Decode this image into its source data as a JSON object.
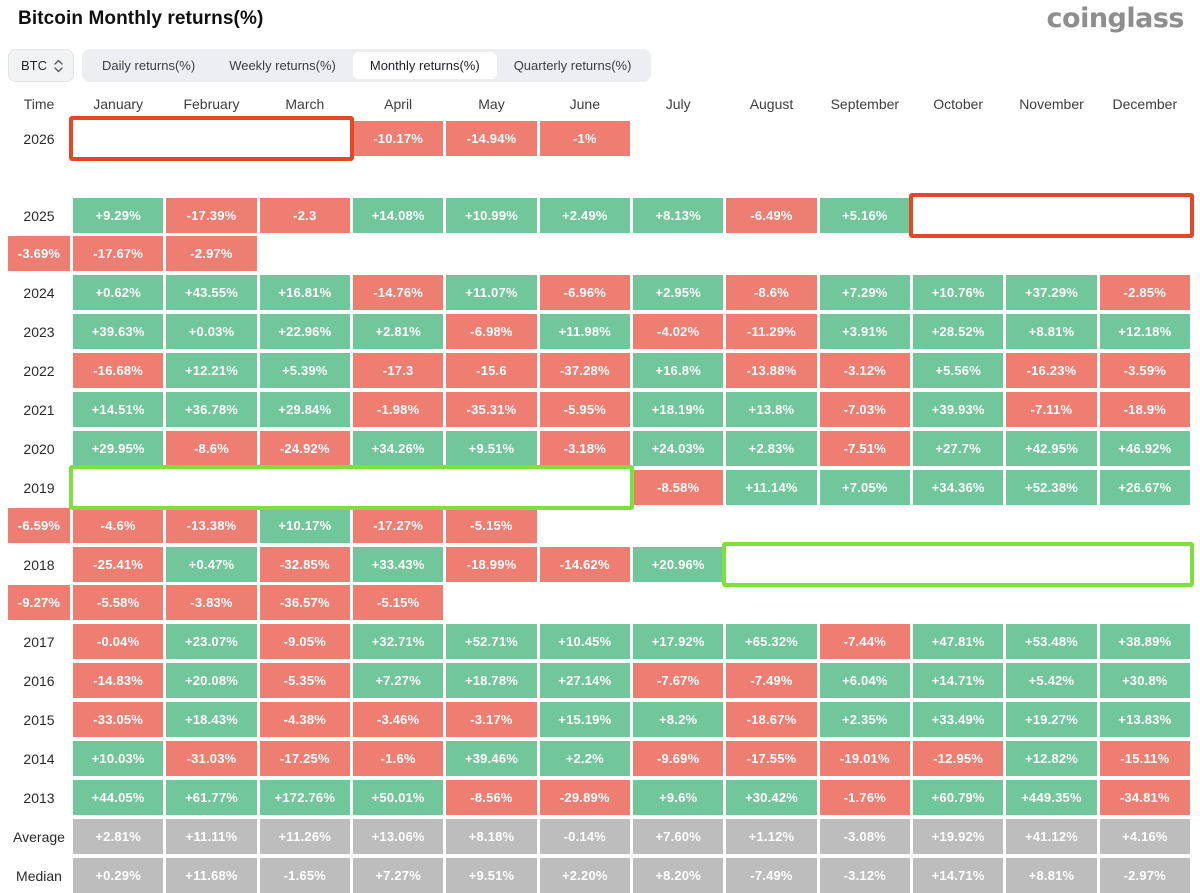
{
  "header": {
    "title": "Bitcoin Monthly returns(%)",
    "logo": "coinglass"
  },
  "controls": {
    "coin_selector": "BTC",
    "tabs": [
      {
        "label": "Daily returns(%)",
        "active": false
      },
      {
        "label": "Weekly returns(%)",
        "active": false
      },
      {
        "label": "Monthly returns(%)",
        "active": true
      },
      {
        "label": "Quarterly returns(%)",
        "active": false
      }
    ]
  },
  "chart_data": {
    "type": "heatmap",
    "title": "Bitcoin Monthly returns(%)",
    "columns": [
      "Time",
      "January",
      "February",
      "March",
      "April",
      "May",
      "June",
      "July",
      "August",
      "September",
      "October",
      "November",
      "December"
    ],
    "colors": {
      "positive": "#71c69b",
      "negative": "#ee7e72",
      "summary_bg": "#bdbdbd",
      "red_box": "#e54726",
      "green_box": "#7ee03c",
      "cell_text": "#ffffff"
    },
    "rows": [
      {
        "label": "2026",
        "values": [
          "-10.17%",
          "-14.94%",
          "-1%",
          "",
          "",
          "",
          "",
          "",
          "",
          "",
          "",
          ""
        ],
        "box": {
          "from": 1,
          "to": 3,
          "color": "red"
        }
      },
      {
        "label": "2025",
        "values": [
          "+9.29%",
          "-17.39%",
          "-2.3",
          "+14.08%",
          "+10.99%",
          "+2.49%",
          "+8.13%",
          "-6.49%",
          "+5.16%",
          "-3.69%",
          "-17.67%",
          "-2.97%"
        ],
        "box": {
          "from": 10,
          "to": 12,
          "color": "red"
        }
      },
      {
        "label": "2024",
        "values": [
          "+0.62%",
          "+43.55%",
          "+16.81%",
          "-14.76%",
          "+11.07%",
          "-6.96%",
          "+2.95%",
          "-8.6%",
          "+7.29%",
          "+10.76%",
          "+37.29%",
          "-2.85%"
        ]
      },
      {
        "label": "2023",
        "values": [
          "+39.63%",
          "+0.03%",
          "+22.96%",
          "+2.81%",
          "-6.98%",
          "+11.98%",
          "-4.02%",
          "-11.29%",
          "+3.91%",
          "+28.52%",
          "+8.81%",
          "+12.18%"
        ]
      },
      {
        "label": "2022",
        "values": [
          "-16.68%",
          "+12.21%",
          "+5.39%",
          "-17.3",
          "-15.6",
          "-37.28%",
          "+16.8%",
          "-13.88%",
          "-3.12%",
          "+5.56%",
          "-16.23%",
          "-3.59%"
        ]
      },
      {
        "label": "2021",
        "values": [
          "+14.51%",
          "+36.78%",
          "+29.84%",
          "-1.98%",
          "-35.31%",
          "-5.95%",
          "+18.19%",
          "+13.8%",
          "-7.03%",
          "+39.93%",
          "-7.11%",
          "-18.9%"
        ]
      },
      {
        "label": "2020",
        "values": [
          "+29.95%",
          "-8.6%",
          "-24.92%",
          "+34.26%",
          "+9.51%",
          "-3.18%",
          "+24.03%",
          "+2.83%",
          "-7.51%",
          "+27.7%",
          "+42.95%",
          "+46.92%"
        ]
      },
      {
        "label": "2019",
        "values": [
          "-8.58%",
          "+11.14%",
          "+7.05%",
          "+34.36%",
          "+52.38%",
          "+26.67%",
          "-6.59%",
          "-4.6%",
          "-13.38%",
          "+10.17%",
          "-17.27%",
          "-5.15%"
        ],
        "box": {
          "from": 1,
          "to": 6,
          "color": "green"
        }
      },
      {
        "label": "2018",
        "values": [
          "-25.41%",
          "+0.47%",
          "-32.85%",
          "+33.43%",
          "-18.99%",
          "-14.62%",
          "+20.96%",
          "-9.27%",
          "-5.58%",
          "-3.83%",
          "-36.57%",
          "-5.15%"
        ],
        "box": {
          "from": 8,
          "to": 12,
          "color": "green"
        }
      },
      {
        "label": "2017",
        "values": [
          "-0.04%",
          "+23.07%",
          "-9.05%",
          "+32.71%",
          "+52.71%",
          "+10.45%",
          "+17.92%",
          "+65.32%",
          "-7.44%",
          "+47.81%",
          "+53.48%",
          "+38.89%"
        ]
      },
      {
        "label": "2016",
        "values": [
          "-14.83%",
          "+20.08%",
          "-5.35%",
          "+7.27%",
          "+18.78%",
          "+27.14%",
          "-7.67%",
          "-7.49%",
          "+6.04%",
          "+14.71%",
          "+5.42%",
          "+30.8%"
        ]
      },
      {
        "label": "2015",
        "values": [
          "-33.05%",
          "+18.43%",
          "-4.38%",
          "-3.46%",
          "-3.17%",
          "+15.19%",
          "+8.2%",
          "-18.67%",
          "+2.35%",
          "+33.49%",
          "+19.27%",
          "+13.83%"
        ]
      },
      {
        "label": "2014",
        "values": [
          "+10.03%",
          "-31.03%",
          "-17.25%",
          "-1.6%",
          "+39.46%",
          "+2.2%",
          "-9.69%",
          "-17.55%",
          "-19.01%",
          "-12.95%",
          "+12.82%",
          "-15.11%"
        ]
      },
      {
        "label": "2013",
        "values": [
          "+44.05%",
          "+61.77%",
          "+172.76%",
          "+50.01%",
          "-8.56%",
          "-29.89%",
          "+9.6%",
          "+30.42%",
          "-1.76%",
          "+60.79%",
          "+449.35%",
          "-34.81%"
        ]
      },
      {
        "label": "Average",
        "summary": true,
        "values": [
          "+2.81%",
          "+11.11%",
          "+11.26%",
          "+13.06%",
          "+8.18%",
          "-0.14%",
          "+7.60%",
          "+1.12%",
          "-3.08%",
          "+19.92%",
          "+41.12%",
          "+4.16%"
        ]
      },
      {
        "label": "Median",
        "summary": true,
        "values": [
          "+0.29%",
          "+11.68%",
          "-1.65%",
          "+7.27%",
          "+9.51%",
          "+2.20%",
          "+8.20%",
          "-7.49%",
          "-3.12%",
          "+14.71%",
          "+8.81%",
          "-2.97%"
        ]
      }
    ]
  }
}
